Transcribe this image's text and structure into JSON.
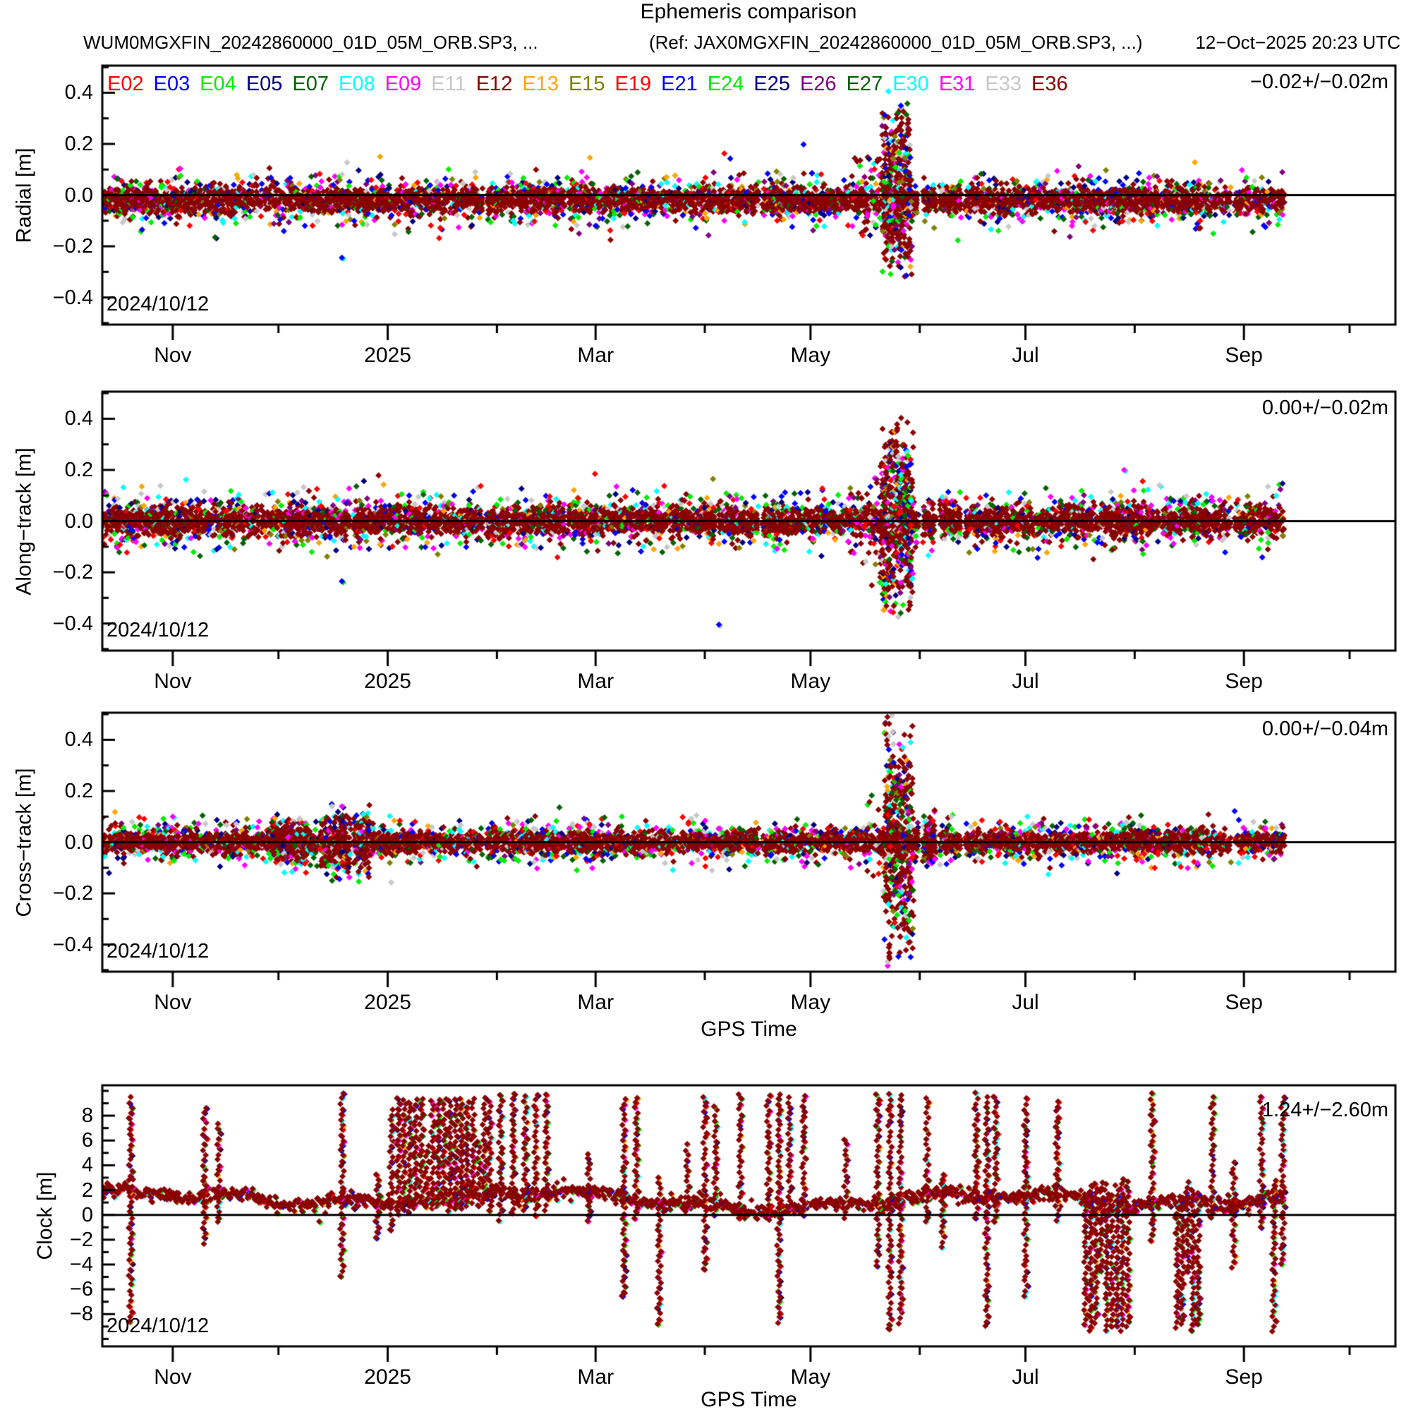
{
  "header": {
    "title": "Ephemeris comparison",
    "file_label": "WUM0MGXFIN_20242860000_01D_05M_ORB.SP3, ...",
    "ref_label": "(Ref: JAX0MGXFIN_20242860000_01D_05M_ORB.SP3, ...)",
    "timestamp": "12−Oct−2025 20:23 UTC"
  },
  "legend": {
    "satellites": [
      {
        "id": "E02",
        "color": "#ff0000"
      },
      {
        "id": "E03",
        "color": "#0000ff"
      },
      {
        "id": "E04",
        "color": "#00ee00"
      },
      {
        "id": "E05",
        "color": "#000080"
      },
      {
        "id": "E07",
        "color": "#006400"
      },
      {
        "id": "E08",
        "color": "#00ffff"
      },
      {
        "id": "E09",
        "color": "#ff00ff"
      },
      {
        "id": "E11",
        "color": "#c8c8c8"
      },
      {
        "id": "E12",
        "color": "#8b0000"
      },
      {
        "id": "E13",
        "color": "#ffa500"
      },
      {
        "id": "E15",
        "color": "#808000"
      },
      {
        "id": "E19",
        "color": "#ff0000"
      },
      {
        "id": "E21",
        "color": "#0000ff"
      },
      {
        "id": "E24",
        "color": "#00ee00"
      },
      {
        "id": "E25",
        "color": "#000080"
      },
      {
        "id": "E26",
        "color": "#800080"
      },
      {
        "id": "E27",
        "color": "#006400"
      },
      {
        "id": "E30",
        "color": "#00ffff"
      },
      {
        "id": "E31",
        "color": "#ff00ff"
      },
      {
        "id": "E33",
        "color": "#c8c8c8"
      },
      {
        "id": "E36",
        "color": "#8b0000"
      }
    ]
  },
  "chart_data": {
    "type": "scatter",
    "seed": 20242860,
    "core_color": "#8b0000",
    "x_axis": {
      "label": "GPS Time",
      "start_date": "2024/10/12",
      "span_days": 367,
      "data_end_day": 335.5,
      "ticks": [
        {
          "d": 20,
          "label": "Nov"
        },
        {
          "d": 50,
          "label": ""
        },
        {
          "d": 81,
          "label": "2025"
        },
        {
          "d": 112,
          "label": ""
        },
        {
          "d": 140,
          "label": "Mar"
        },
        {
          "d": 171,
          "label": ""
        },
        {
          "d": 201,
          "label": "May"
        },
        {
          "d": 232,
          "label": ""
        },
        {
          "d": 262,
          "label": "Jul"
        },
        {
          "d": 293,
          "label": ""
        },
        {
          "d": 324,
          "label": "Sep"
        },
        {
          "d": 354,
          "label": ""
        }
      ],
      "gaps": [
        [
          70.5,
          71.5
        ],
        [
          108,
          109
        ],
        [
          131,
          132
        ],
        [
          174,
          175
        ],
        [
          186,
          187.5
        ],
        [
          231.5,
          233
        ],
        [
          236.5,
          238
        ],
        [
          243.5,
          245
        ],
        [
          300,
          301
        ],
        [
          320,
          321.5
        ]
      ]
    },
    "panels": [
      {
        "kind": "orbit",
        "ylabel": "Radial [m]",
        "ylim": [
          -0.506,
          0.506
        ],
        "yticks_major": [
          {
            "v": 0.4,
            "label": "0.4"
          },
          {
            "v": 0.2,
            "label": "0.2"
          },
          {
            "v": 0,
            "label": "0.0"
          },
          {
            "v": -0.2,
            "label": "−0.2"
          },
          {
            "v": -0.4,
            "label": "−0.4"
          }
        ],
        "yticks_minor": [
          0.5,
          0.3,
          0.1,
          -0.1,
          -0.3,
          -0.5
        ],
        "stat": "−0.02+/−0.02m",
        "date_label": "2024/10/12",
        "bias": -0.02,
        "sigma": 0.022,
        "burst": {
          "d0": 221.5,
          "d1": 229.5,
          "top": 0.41,
          "bottom": -0.33,
          "shoulder_d0": 213,
          "shoulder_amp": 0.17
        },
        "bumps": [],
        "outliers": [
          [
            32,
            -0.165,
            "#006400"
          ],
          [
            68,
            -0.245,
            "#0000ff"
          ],
          [
            96,
            -0.13,
            "#ff0000"
          ],
          [
            140,
            -0.12,
            "#0000ff"
          ]
        ],
        "show_gps_time": false
      },
      {
        "kind": "orbit",
        "ylabel": "Along−track [m]",
        "ylim": [
          -0.506,
          0.506
        ],
        "yticks_major": [
          {
            "v": 0.4,
            "label": "0.4"
          },
          {
            "v": 0.2,
            "label": "0.2"
          },
          {
            "v": 0,
            "label": "0.0"
          },
          {
            "v": -0.2,
            "label": "−0.2"
          },
          {
            "v": -0.4,
            "label": "−0.4"
          }
        ],
        "yticks_minor": [
          0.5,
          0.3,
          0.1,
          -0.1,
          -0.3,
          -0.5
        ],
        "stat": "0.00+/−0.02m",
        "date_label": "2024/10/12",
        "bias": 0.0,
        "sigma": 0.025,
        "burst": {
          "d0": 221,
          "d1": 230,
          "top": 0.42,
          "bottom": -0.42,
          "shoulder_d0": 212,
          "shoulder_amp": 0.2
        },
        "bumps": [],
        "outliers": [
          [
            68,
            -0.235,
            "#0000ff"
          ],
          [
            175,
            -0.405,
            "#0000ff"
          ],
          [
            290,
            0.2,
            "#ff00ff"
          ],
          [
            300,
            0.14,
            "#c8c8c8"
          ]
        ],
        "show_gps_time": false
      },
      {
        "kind": "orbit",
        "ylabel": "Cross−track [m]",
        "ylim": [
          -0.506,
          0.506
        ],
        "yticks_major": [
          {
            "v": 0.4,
            "label": "0.4"
          },
          {
            "v": 0.2,
            "label": "0.2"
          },
          {
            "v": 0,
            "label": "0.0"
          },
          {
            "v": -0.2,
            "label": "−0.2"
          },
          {
            "v": -0.4,
            "label": "−0.4"
          }
        ],
        "yticks_minor": [
          0.5,
          0.3,
          0.1,
          -0.1,
          -0.3,
          -0.5
        ],
        "stat": "0.00+/−0.04m",
        "date_label": "2024/10/12",
        "bias": 0.0,
        "sigma": 0.018,
        "burst": {
          "d0": 222,
          "d1": 230,
          "top": 0.52,
          "bottom": -0.52,
          "shoulder_d0": 217,
          "shoulder_amp": 0.2
        },
        "bumps": [
          {
            "d0": 48,
            "d1": 58,
            "amp": 0.1
          },
          {
            "d0": 62,
            "d1": 76,
            "amp": 0.13
          },
          {
            "d0": 231,
            "d1": 238,
            "amp": 0.1
          }
        ],
        "outliers": [
          [
            20,
            0.1,
            "#ff00ff"
          ],
          [
            68,
            0.14,
            "#ff00ff"
          ]
        ],
        "show_gps_time": true
      },
      {
        "kind": "clock",
        "ylabel": "Clock [m]",
        "ylim": [
          -10.6,
          10.45
        ],
        "yticks_major": [
          {
            "v": 8,
            "label": "8"
          },
          {
            "v": 6,
            "label": "6"
          },
          {
            "v": 4,
            "label": "4"
          },
          {
            "v": 2,
            "label": "2"
          },
          {
            "v": 0,
            "label": "0"
          },
          {
            "v": -2,
            "label": "−2"
          },
          {
            "v": -4,
            "label": "−4"
          },
          {
            "v": -6,
            "label": "−6"
          },
          {
            "v": -8,
            "label": "−8"
          }
        ],
        "yticks_minor": [
          10,
          9,
          7,
          5,
          3,
          1,
          -1,
          -3,
          -5,
          -7,
          -9,
          -10
        ],
        "stat": "1.24+/−2.60m",
        "date_label": "2024/10/12",
        "base": {
          "mean": 1.25,
          "amp1": 0.55,
          "per1": 19,
          "amp2": 0.3,
          "per2": 5.3,
          "amp3": 0.25,
          "per3": 43,
          "sigma": 0.3
        },
        "spikes": [
          [
            8,
            9.3,
            -8.6
          ],
          [
            29,
            8.3,
            -2.3
          ],
          [
            33,
            7.2,
            -0.6
          ],
          [
            68,
            9.4,
            -4.9
          ],
          [
            78,
            3.2,
            -1.8
          ],
          [
            82,
            8.2,
            -1.2
          ],
          [
            113,
            9.4,
            -0.4
          ],
          [
            116.5,
            9.4,
            0.1
          ],
          [
            120,
            9.4,
            0.3
          ],
          [
            123,
            9.4,
            0
          ],
          [
            126,
            9.4,
            0.4
          ],
          [
            138,
            4.9,
            -0.5
          ],
          [
            148,
            9.3,
            -6.6
          ],
          [
            151.5,
            9.2,
            -0.2
          ],
          [
            158,
            2.8,
            -8.8
          ],
          [
            166,
            5.6,
            0.2
          ],
          [
            171,
            9.3,
            -4.3
          ],
          [
            174,
            8.8,
            0
          ],
          [
            181,
            9.4,
            -0.3
          ],
          [
            189,
            9.4,
            0
          ],
          [
            192,
            9.4,
            -8.7
          ],
          [
            195,
            9.4,
            0.2
          ],
          [
            199,
            9.4,
            0
          ],
          [
            211,
            5.7,
            -0.2
          ],
          [
            220,
            9.4,
            -4.1
          ],
          [
            223.5,
            9.4,
            -9.2
          ],
          [
            226.5,
            9.4,
            -8.8
          ],
          [
            234,
            9.4,
            -0.6
          ],
          [
            238.5,
            2.9,
            -2.6
          ],
          [
            248,
            9.4,
            -0.3
          ],
          [
            251,
            9.4,
            -9.0
          ],
          [
            253.5,
            9.4,
            -0.5
          ],
          [
            262,
            9.2,
            -6.6
          ],
          [
            271,
            8.9,
            -0.5
          ],
          [
            298,
            9.4,
            -2.0
          ],
          [
            315,
            9.3,
            -0.2
          ],
          [
            321,
            4.2,
            -4.2
          ],
          [
            329,
            9.4,
            -1.0
          ],
          [
            332.5,
            2.5,
            -9.4
          ],
          [
            335,
            9.4,
            -4.0
          ]
        ],
        "trains": [
          {
            "d0": 84,
            "d1": 110,
            "cols": 17,
            "top": 9.4,
            "bottom": 0.3
          },
          {
            "d0": 279,
            "d1": 291,
            "cols": 9,
            "top": 2.6,
            "bottom": -9.4
          },
          {
            "d0": 305,
            "d1": 311,
            "cols": 5,
            "top": 2.2,
            "bottom": -9.3
          }
        ],
        "show_gps_time": true
      }
    ]
  }
}
